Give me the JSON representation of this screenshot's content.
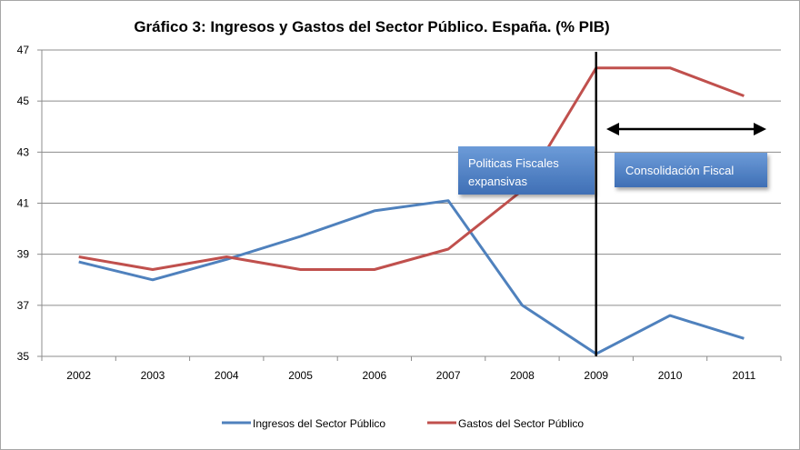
{
  "chart_data": {
    "type": "line",
    "title": "Gráfico 3: Ingresos y Gastos del Sector Público. España. (% PIB)",
    "xlabel": "",
    "ylabel": "",
    "categories": [
      "2002",
      "2003",
      "2004",
      "2005",
      "2006",
      "2007",
      "2008",
      "2009",
      "2010",
      "2011"
    ],
    "ylim": [
      35,
      47
    ],
    "yticks": [
      35,
      37,
      39,
      41,
      43,
      45,
      47
    ],
    "grid": true,
    "legend_position": "bottom",
    "series": [
      {
        "name": "Ingresos del Sector Público",
        "color": "#4f81bd",
        "values": [
          38.7,
          38.0,
          38.8,
          39.7,
          40.7,
          41.1,
          37.0,
          35.1,
          36.6,
          35.7
        ]
      },
      {
        "name": "Gastos del Sector Público",
        "color": "#c0504d",
        "values": [
          38.9,
          38.4,
          38.9,
          38.4,
          38.4,
          39.2,
          41.5,
          46.3,
          46.3,
          45.2
        ]
      }
    ],
    "annotations": {
      "box1_text_line1": "Politicas Fiscales",
      "box1_text_line2": "expansivas",
      "box2_text": "Consolidación Fiscal",
      "box_color": "#4f81bd",
      "divider_at": "2009"
    }
  }
}
